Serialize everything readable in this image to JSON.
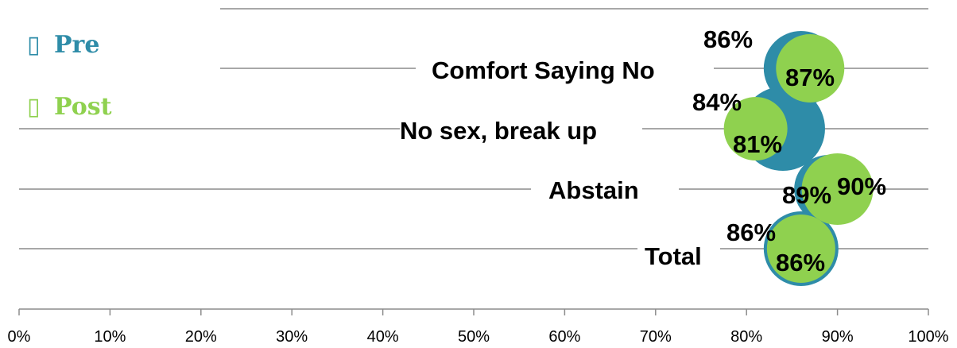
{
  "chart_data": {
    "type": "bubble",
    "x_ticks": [
      "0%",
      "10%",
      "20%",
      "30%",
      "40%",
      "50%",
      "60%",
      "70%",
      "80%",
      "90%",
      "100%"
    ],
    "xlim": [
      0,
      100
    ],
    "categories": [
      "Comfort Saying No",
      "No sex, break up",
      "Abstain",
      "Total"
    ],
    "series": [
      {
        "name": "Pre",
        "color": "#2e8ca8",
        "values": [
          86,
          84,
          89,
          86
        ],
        "labels": [
          "86%",
          "84%",
          "89%",
          "86%"
        ]
      },
      {
        "name": "Post",
        "color": "#8fd14f",
        "values": [
          87,
          81,
          90,
          86
        ],
        "labels": [
          "87%",
          "81%",
          "90%",
          "86%"
        ]
      }
    ],
    "legend": {
      "position": "top-left",
      "items": [
        {
          "marker": "▯",
          "label": "Pre",
          "color": "#2e8ca8"
        },
        {
          "marker": "▯",
          "label": "Post",
          "color": "#8fd14f"
        }
      ]
    },
    "grid": true
  }
}
